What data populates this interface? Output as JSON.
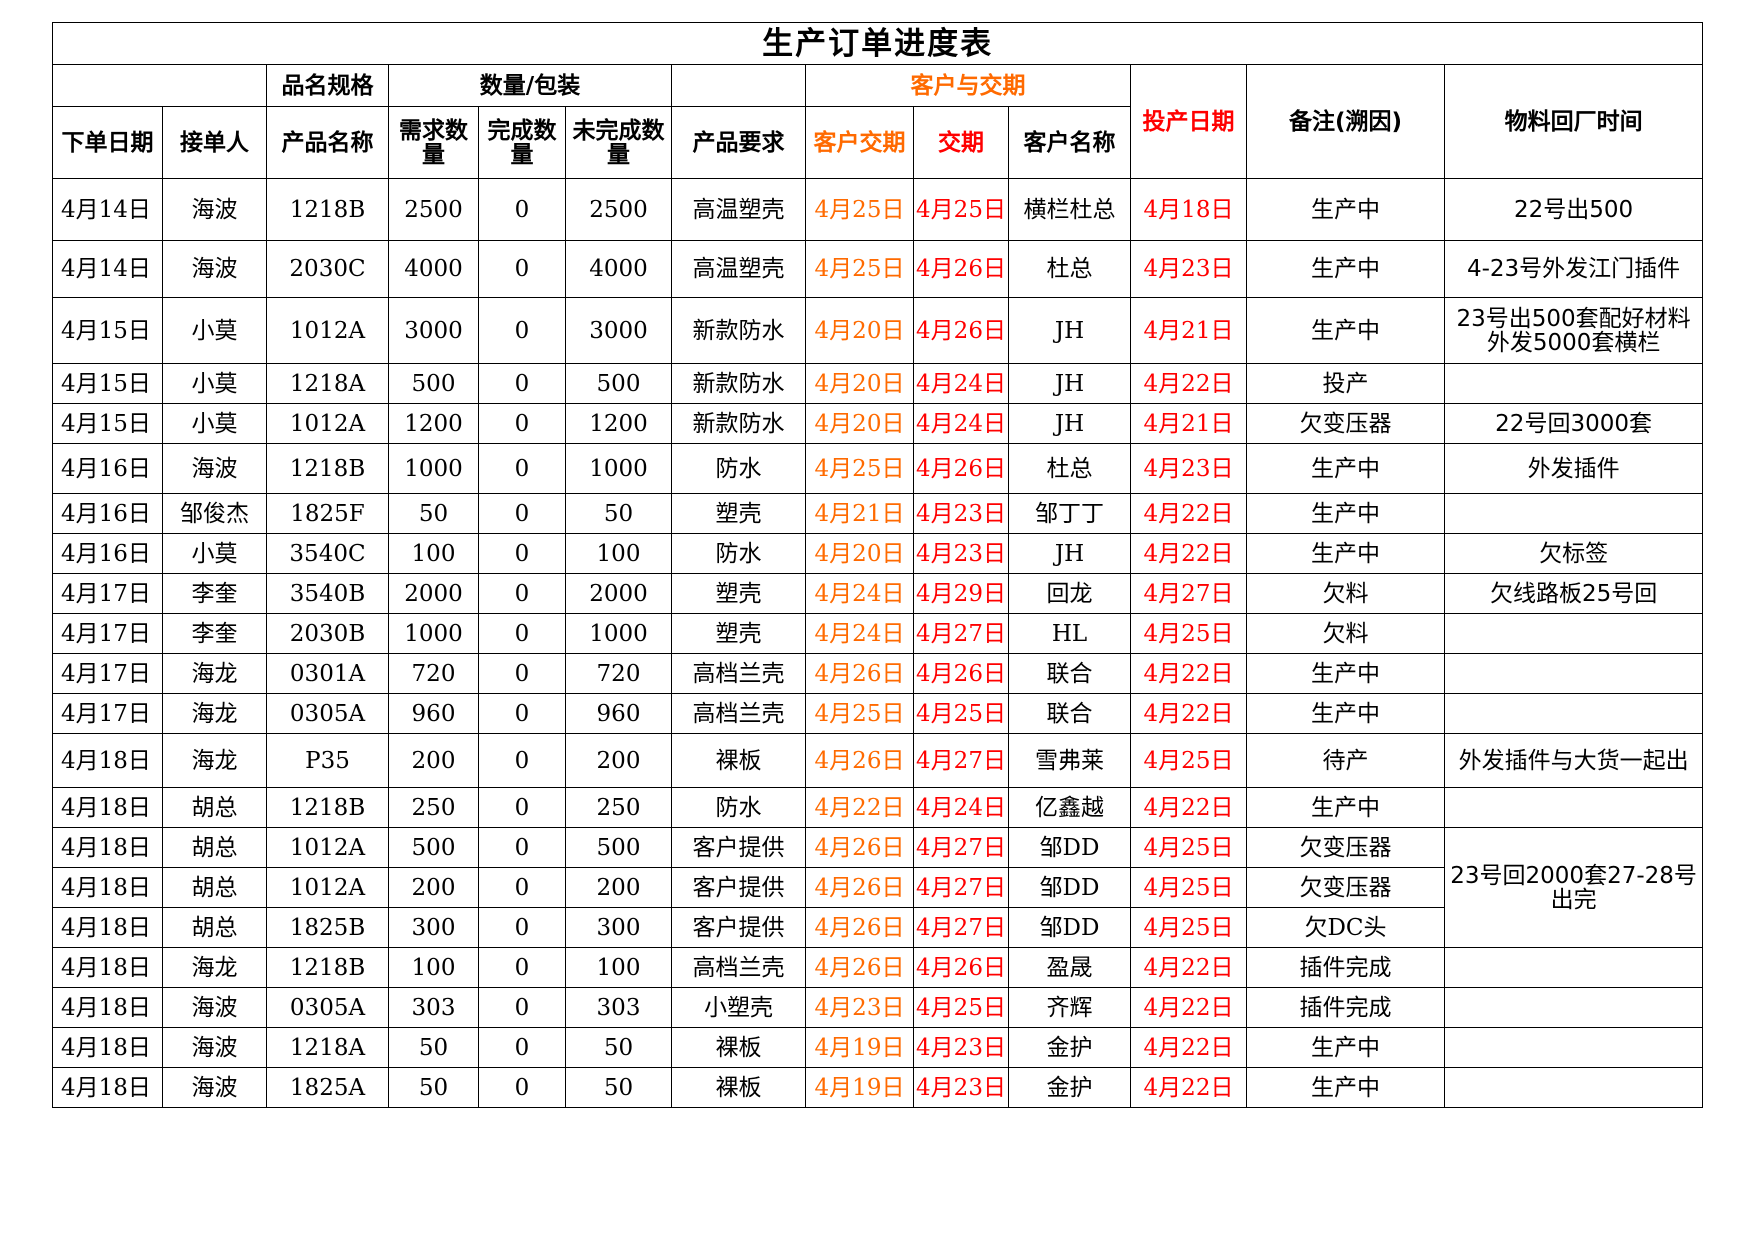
{
  "title": "生产订单进度表",
  "header_top": {
    "product_spec": "品名规格",
    "quantity_pack": "数量/包装",
    "customer_delivery": "客户与交期",
    "start_date": "投产日期",
    "remarks": "备注(溯因)",
    "material_return": "物料回厂时间"
  },
  "header_sub": {
    "order_date": "下单日期",
    "receiver": "接单人",
    "product_name": "产品名称",
    "demand_qty": "需求数量",
    "done_qty": "完成数量",
    "undone_qty": "未完成数量",
    "product_req": "产品要求",
    "customer_due": "客户交期",
    "due": "交期",
    "customer_name": "客户名称"
  },
  "rows": [
    {
      "order_date": "4月14日",
      "receiver": "海波",
      "product": "1218B",
      "demand": "2500",
      "done": "0",
      "undone": "2500",
      "req": "高温塑壳",
      "cust_due": "4月25日",
      "due": "4月25日",
      "customer": "横栏杜总",
      "start": "4月18日",
      "remark": "生产中",
      "material": "22号出500"
    },
    {
      "order_date": "4月14日",
      "receiver": "海波",
      "product": "2030C",
      "demand": "4000",
      "done": "0",
      "undone": "4000",
      "req": "高温塑壳",
      "cust_due": "4月25日",
      "due": "4月26日",
      "customer": "杜总",
      "start": "4月23日",
      "remark": "生产中",
      "material": "4-23号外发江门插件"
    },
    {
      "order_date": "4月15日",
      "receiver": "小莫",
      "product": "1012A",
      "demand": "3000",
      "done": "0",
      "undone": "3000",
      "req": "新款防水",
      "cust_due": "4月20日",
      "due": "4月26日",
      "customer": "JH",
      "start": "4月21日",
      "remark": "生产中",
      "material": "23号出500套配好材料外发5000套横栏"
    },
    {
      "order_date": "4月15日",
      "receiver": "小莫",
      "product": "1218A",
      "demand": "500",
      "done": "0",
      "undone": "500",
      "req": "新款防水",
      "cust_due": "4月20日",
      "due": "4月24日",
      "customer": "JH",
      "start": "4月22日",
      "remark": "投产",
      "material": ""
    },
    {
      "order_date": "4月15日",
      "receiver": "小莫",
      "product": "1012A",
      "demand": "1200",
      "done": "0",
      "undone": "1200",
      "req": "新款防水",
      "cust_due": "4月20日",
      "due": "4月24日",
      "customer": "JH",
      "start": "4月21日",
      "remark": "欠变压器",
      "material": "22号回3000套"
    },
    {
      "order_date": "4月16日",
      "receiver": "海波",
      "product": "1218B",
      "demand": "1000",
      "done": "0",
      "undone": "1000",
      "req": "防水",
      "cust_due": "4月25日",
      "due": "4月26日",
      "customer": "杜总",
      "start": "4月23日",
      "remark": "生产中",
      "material": "外发插件"
    },
    {
      "order_date": "4月16日",
      "receiver": "邹俊杰",
      "product": "1825F",
      "demand": "50",
      "done": "0",
      "undone": "50",
      "req": "塑壳",
      "cust_due": "4月21日",
      "due": "4月23日",
      "customer": "邹丁丁",
      "start": "4月22日",
      "remark": "生产中",
      "material": ""
    },
    {
      "order_date": "4月16日",
      "receiver": "小莫",
      "product": "3540C",
      "demand": "100",
      "done": "0",
      "undone": "100",
      "req": "防水",
      "cust_due": "4月20日",
      "due": "4月23日",
      "customer": "JH",
      "start": "4月22日",
      "remark": "生产中",
      "material": "欠标签"
    },
    {
      "order_date": "4月17日",
      "receiver": "李奎",
      "product": "3540B",
      "demand": "2000",
      "done": "0",
      "undone": "2000",
      "req": "塑壳",
      "cust_due": "4月24日",
      "due": "4月29日",
      "customer": "回龙",
      "start": "4月27日",
      "remark": "欠料",
      "material": "欠线路板25号回"
    },
    {
      "order_date": "4月17日",
      "receiver": "李奎",
      "product": "2030B",
      "demand": "1000",
      "done": "0",
      "undone": "1000",
      "req": "塑壳",
      "cust_due": "4月24日",
      "due": "4月27日",
      "customer": "HL",
      "start": "4月25日",
      "remark": "欠料",
      "material": ""
    },
    {
      "order_date": "4月17日",
      "receiver": "海龙",
      "product": "0301A",
      "demand": "720",
      "done": "0",
      "undone": "720",
      "req": "高档兰壳",
      "cust_due": "4月26日",
      "due": "4月26日",
      "customer": "联合",
      "start": "4月22日",
      "remark": "生产中",
      "material": ""
    },
    {
      "order_date": "4月17日",
      "receiver": "海龙",
      "product": "0305A",
      "demand": "960",
      "done": "0",
      "undone": "960",
      "req": "高档兰壳",
      "cust_due": "4月25日",
      "due": "4月25日",
      "customer": "联合",
      "start": "4月22日",
      "remark": "生产中",
      "material": ""
    },
    {
      "order_date": "4月18日",
      "receiver": "海龙",
      "product": "P35",
      "demand": "200",
      "done": "0",
      "undone": "200",
      "req": "裸板",
      "cust_due": "4月26日",
      "due": "4月27日",
      "customer": "雪弗莱",
      "start": "4月25日",
      "remark": "待产",
      "material": "外发插件与大货一起出"
    },
    {
      "order_date": "4月18日",
      "receiver": "胡总",
      "product": "1218B",
      "demand": "250",
      "done": "0",
      "undone": "250",
      "req": "防水",
      "cust_due": "4月22日",
      "due": "4月24日",
      "customer": "亿鑫越",
      "start": "4月22日",
      "remark": "生产中",
      "material": ""
    },
    {
      "order_date": "4月18日",
      "receiver": "胡总",
      "product": "1012A",
      "demand": "500",
      "done": "0",
      "undone": "500",
      "req": "客户提供",
      "cust_due": "4月26日",
      "due": "4月27日",
      "customer": "邹DD",
      "start": "4月25日",
      "remark": "欠变压器",
      "material": "23号回2000套27-28号出完"
    },
    {
      "order_date": "4月18日",
      "receiver": "胡总",
      "product": "1012A",
      "demand": "200",
      "done": "0",
      "undone": "200",
      "req": "客户提供",
      "cust_due": "4月26日",
      "due": "4月27日",
      "customer": "邹DD",
      "start": "4月25日",
      "remark": "欠变压器",
      "material": null
    },
    {
      "order_date": "4月18日",
      "receiver": "胡总",
      "product": "1825B",
      "demand": "300",
      "done": "0",
      "undone": "300",
      "req": "客户提供",
      "cust_due": "4月26日",
      "due": "4月27日",
      "customer": "邹DD",
      "start": "4月25日",
      "remark": "欠DC头",
      "material": null
    },
    {
      "order_date": "4月18日",
      "receiver": "海龙",
      "product": "1218B",
      "demand": "100",
      "done": "0",
      "undone": "100",
      "req": "高档兰壳",
      "cust_due": "4月26日",
      "due": "4月26日",
      "customer": "盈晟",
      "start": "4月22日",
      "remark": "插件完成",
      "material": ""
    },
    {
      "order_date": "4月18日",
      "receiver": "海波",
      "product": "0305A",
      "demand": "303",
      "done": "0",
      "undone": "303",
      "req": "小塑壳",
      "cust_due": "4月23日",
      "due": "4月25日",
      "customer": "齐辉",
      "start": "4月22日",
      "remark": "插件完成",
      "material": ""
    },
    {
      "order_date": "4月18日",
      "receiver": "海波",
      "product": "1218A",
      "demand": "50",
      "done": "0",
      "undone": "50",
      "req": "裸板",
      "cust_due": "4月19日",
      "due": "4月23日",
      "customer": "金护",
      "start": "4月22日",
      "remark": "生产中",
      "material": ""
    },
    {
      "order_date": "4月18日",
      "receiver": "海波",
      "product": "1825A",
      "demand": "50",
      "done": "0",
      "undone": "50",
      "req": "裸板",
      "cust_due": "4月19日",
      "due": "4月23日",
      "customer": "金护",
      "start": "4月22日",
      "remark": "生产中",
      "material": ""
    }
  ]
}
